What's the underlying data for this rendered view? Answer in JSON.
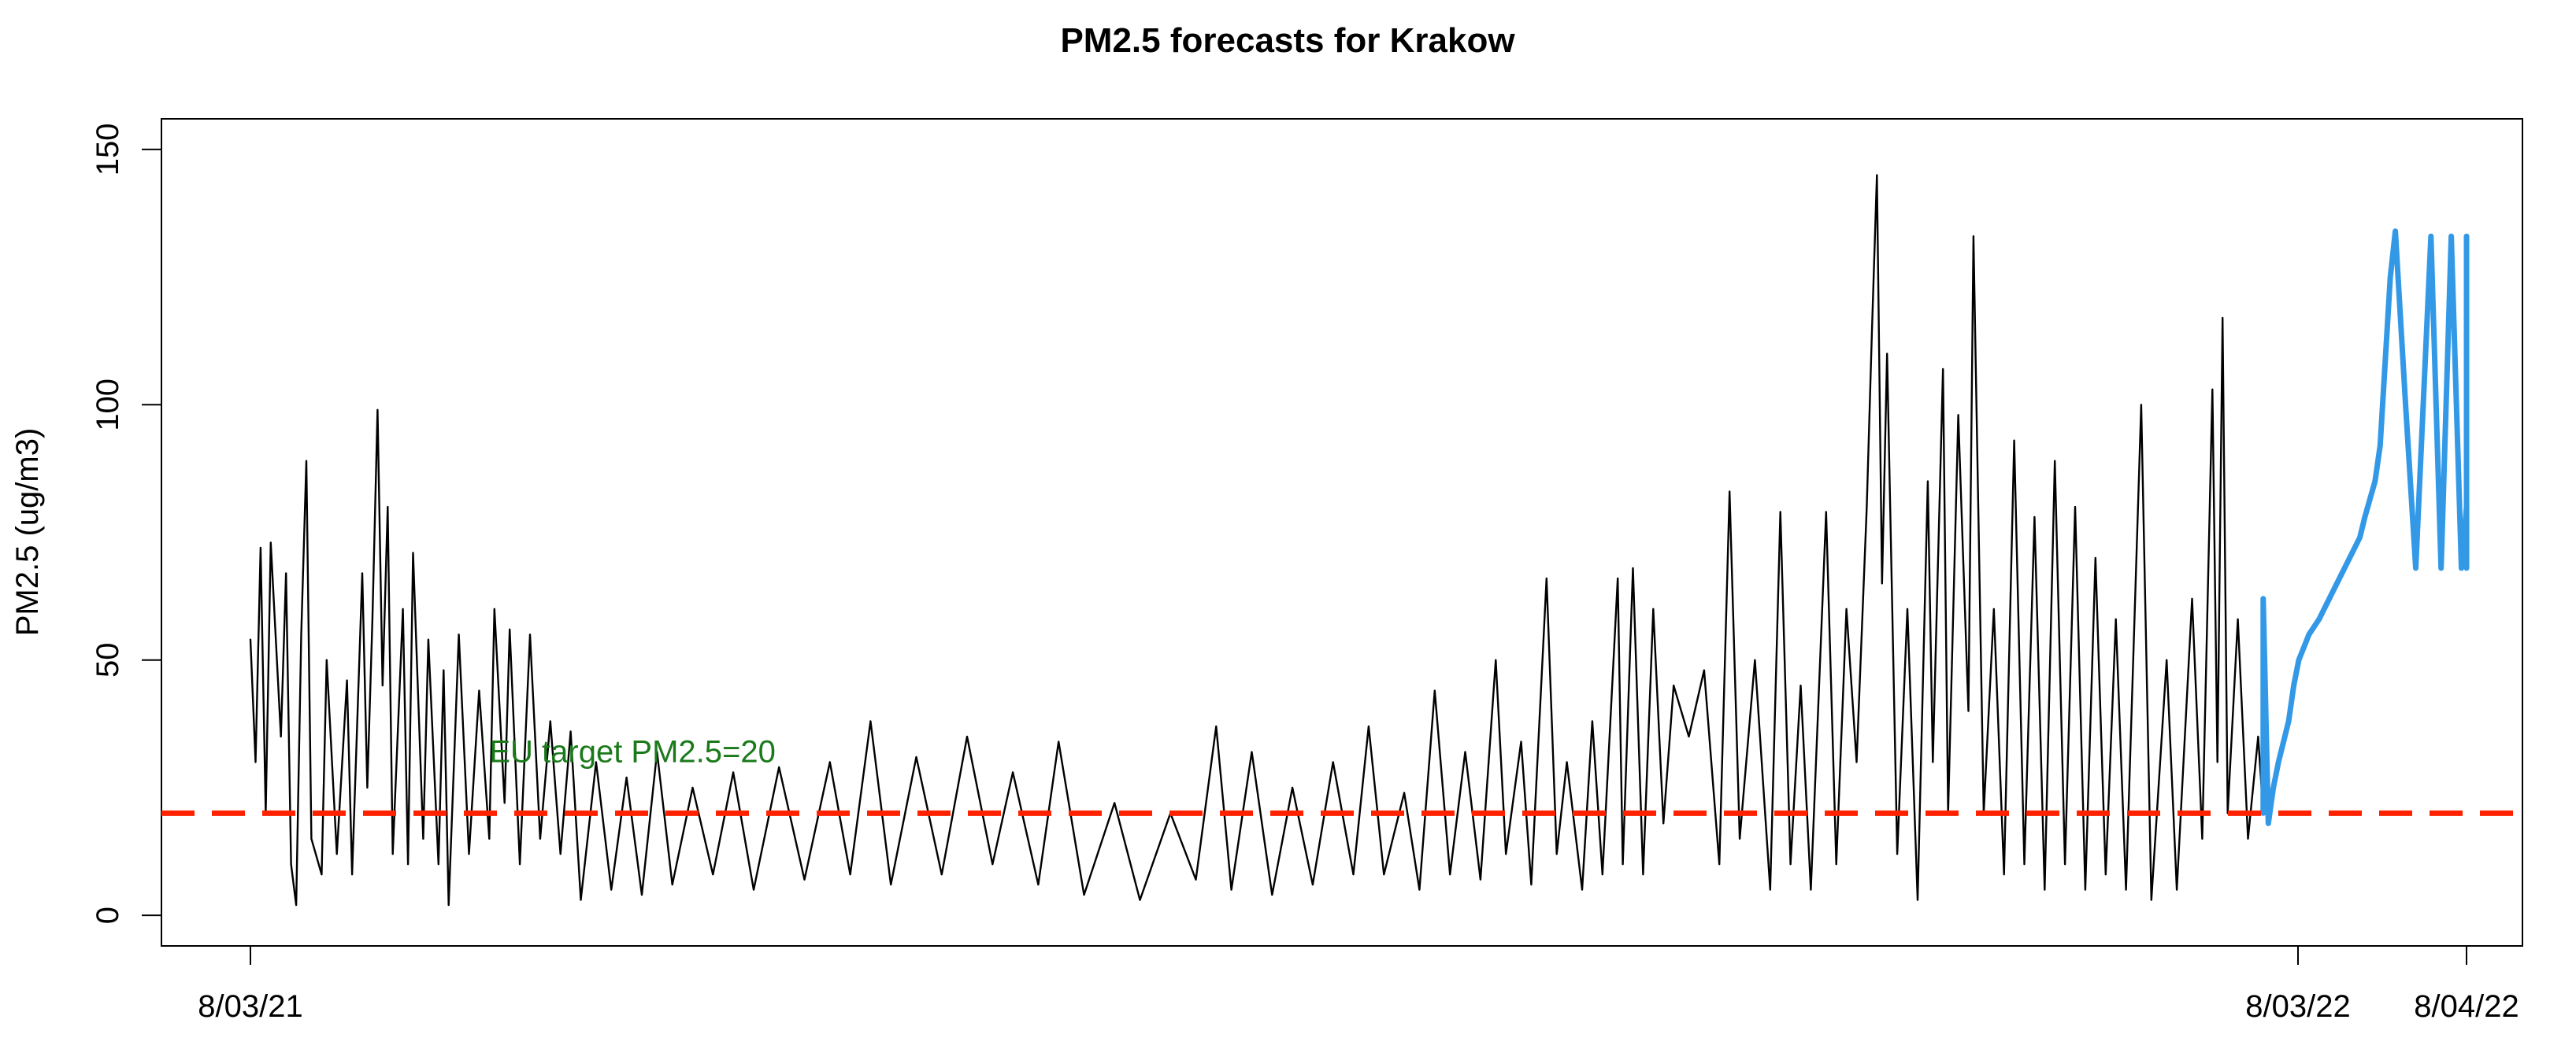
{
  "chart_data": {
    "type": "line",
    "title": "PM2.5 forecasts for Krakow",
    "xlabel": "",
    "ylabel": "PM2.5 (ug/m3)",
    "ylim": [
      -6,
      156
    ],
    "x_ticks": [
      "8/03/21",
      "8/03/22",
      "8/04/22"
    ],
    "y_ticks": [
      0,
      50,
      100,
      150
    ],
    "grid": false,
    "colors": {
      "observed": "#000000",
      "forecast": "#3399e6",
      "threshold": "#ff2200",
      "annotation": "#1a7a1a"
    },
    "reference_line": {
      "y": 20,
      "style": "dashed",
      "color": "#ff2200"
    },
    "annotation": {
      "text": "EU target PM2.5=20",
      "x": "2021-04-24",
      "y": 30,
      "color": "#1a7a1a"
    },
    "series": [
      {
        "role": "observed",
        "color": "#000000",
        "points": [
          [
            "2021-03-08",
            54
          ],
          [
            "2021-03-09",
            30
          ],
          [
            "2021-03-10",
            72
          ],
          [
            "2021-03-11",
            20
          ],
          [
            "2021-03-12",
            73
          ],
          [
            "2021-03-14",
            35
          ],
          [
            "2021-03-15",
            67
          ],
          [
            "2021-03-16",
            10
          ],
          [
            "2021-03-17",
            2
          ],
          [
            "2021-03-18",
            55
          ],
          [
            "2021-03-19",
            89
          ],
          [
            "2021-03-20",
            15
          ],
          [
            "2021-03-22",
            8
          ],
          [
            "2021-03-23",
            50
          ],
          [
            "2021-03-25",
            12
          ],
          [
            "2021-03-27",
            46
          ],
          [
            "2021-03-28",
            8
          ],
          [
            "2021-03-30",
            67
          ],
          [
            "2021-03-31",
            25
          ],
          [
            "2021-04-01",
            58
          ],
          [
            "2021-04-02",
            99
          ],
          [
            "2021-04-03",
            45
          ],
          [
            "2021-04-04",
            80
          ],
          [
            "2021-04-05",
            12
          ],
          [
            "2021-04-07",
            60
          ],
          [
            "2021-04-08",
            10
          ],
          [
            "2021-04-09",
            71
          ],
          [
            "2021-04-11",
            15
          ],
          [
            "2021-04-12",
            54
          ],
          [
            "2021-04-14",
            10
          ],
          [
            "2021-04-15",
            48
          ],
          [
            "2021-04-16",
            2
          ],
          [
            "2021-04-18",
            55
          ],
          [
            "2021-04-20",
            12
          ],
          [
            "2021-04-22",
            44
          ],
          [
            "2021-04-24",
            15
          ],
          [
            "2021-04-25",
            60
          ],
          [
            "2021-04-27",
            22
          ],
          [
            "2021-04-28",
            56
          ],
          [
            "2021-04-30",
            10
          ],
          [
            "2021-05-02",
            55
          ],
          [
            "2021-05-04",
            15
          ],
          [
            "2021-05-06",
            38
          ],
          [
            "2021-05-08",
            12
          ],
          [
            "2021-05-10",
            36
          ],
          [
            "2021-05-12",
            3
          ],
          [
            "2021-05-15",
            30
          ],
          [
            "2021-05-18",
            5
          ],
          [
            "2021-05-21",
            27
          ],
          [
            "2021-05-24",
            4
          ],
          [
            "2021-05-27",
            32
          ],
          [
            "2021-05-30",
            6
          ],
          [
            "2021-06-03",
            25
          ],
          [
            "2021-06-07",
            8
          ],
          [
            "2021-06-11",
            28
          ],
          [
            "2021-06-15",
            5
          ],
          [
            "2021-06-20",
            29
          ],
          [
            "2021-06-25",
            7
          ],
          [
            "2021-06-30",
            30
          ],
          [
            "2021-07-04",
            8
          ],
          [
            "2021-07-08",
            38
          ],
          [
            "2021-07-12",
            6
          ],
          [
            "2021-07-17",
            31
          ],
          [
            "2021-07-22",
            8
          ],
          [
            "2021-07-27",
            35
          ],
          [
            "2021-08-01",
            10
          ],
          [
            "2021-08-05",
            28
          ],
          [
            "2021-08-10",
            6
          ],
          [
            "2021-08-14",
            34
          ],
          [
            "2021-08-19",
            4
          ],
          [
            "2021-08-25",
            22
          ],
          [
            "2021-08-30",
            3
          ],
          [
            "2021-09-05",
            20
          ],
          [
            "2021-09-10",
            7
          ],
          [
            "2021-09-14",
            37
          ],
          [
            "2021-09-17",
            5
          ],
          [
            "2021-09-21",
            32
          ],
          [
            "2021-09-25",
            4
          ],
          [
            "2021-09-29",
            25
          ],
          [
            "2021-10-03",
            6
          ],
          [
            "2021-10-07",
            30
          ],
          [
            "2021-10-11",
            8
          ],
          [
            "2021-10-14",
            37
          ],
          [
            "2021-10-17",
            8
          ],
          [
            "2021-10-21",
            24
          ],
          [
            "2021-10-24",
            5
          ],
          [
            "2021-10-27",
            44
          ],
          [
            "2021-10-30",
            8
          ],
          [
            "2021-11-02",
            32
          ],
          [
            "2021-11-05",
            7
          ],
          [
            "2021-11-08",
            50
          ],
          [
            "2021-11-10",
            12
          ],
          [
            "2021-11-13",
            34
          ],
          [
            "2021-11-15",
            6
          ],
          [
            "2021-11-18",
            66
          ],
          [
            "2021-11-20",
            12
          ],
          [
            "2021-11-22",
            30
          ],
          [
            "2021-11-25",
            5
          ],
          [
            "2021-11-27",
            38
          ],
          [
            "2021-11-29",
            8
          ],
          [
            "2021-12-02",
            66
          ],
          [
            "2021-12-03",
            10
          ],
          [
            "2021-12-05",
            68
          ],
          [
            "2021-12-07",
            8
          ],
          [
            "2021-12-09",
            60
          ],
          [
            "2021-12-11",
            18
          ],
          [
            "2021-12-13",
            45
          ],
          [
            "2021-12-16",
            35
          ],
          [
            "2021-12-19",
            48
          ],
          [
            "2021-12-22",
            10
          ],
          [
            "2021-12-24",
            83
          ],
          [
            "2021-12-26",
            15
          ],
          [
            "2021-12-29",
            50
          ],
          [
            "2022-01-01",
            5
          ],
          [
            "2022-01-03",
            79
          ],
          [
            "2022-01-05",
            10
          ],
          [
            "2022-01-07",
            45
          ],
          [
            "2022-01-09",
            5
          ],
          [
            "2022-01-12",
            79
          ],
          [
            "2022-01-14",
            10
          ],
          [
            "2022-01-16",
            60
          ],
          [
            "2022-01-18",
            30
          ],
          [
            "2022-01-20",
            80
          ],
          [
            "2022-01-21",
            114
          ],
          [
            "2022-01-22",
            145
          ],
          [
            "2022-01-23",
            65
          ],
          [
            "2022-01-24",
            110
          ],
          [
            "2022-01-26",
            12
          ],
          [
            "2022-01-28",
            60
          ],
          [
            "2022-01-30",
            3
          ],
          [
            "2022-02-01",
            85
          ],
          [
            "2022-02-02",
            30
          ],
          [
            "2022-02-04",
            107
          ],
          [
            "2022-02-05",
            20
          ],
          [
            "2022-02-07",
            98
          ],
          [
            "2022-02-09",
            40
          ],
          [
            "2022-02-10",
            133
          ],
          [
            "2022-02-12",
            20
          ],
          [
            "2022-02-14",
            60
          ],
          [
            "2022-02-16",
            8
          ],
          [
            "2022-02-18",
            93
          ],
          [
            "2022-02-20",
            10
          ],
          [
            "2022-02-22",
            78
          ],
          [
            "2022-02-24",
            5
          ],
          [
            "2022-02-26",
            89
          ],
          [
            "2022-02-28",
            10
          ],
          [
            "2022-03-02",
            80
          ],
          [
            "2022-03-04",
            5
          ],
          [
            "2022-03-06",
            70
          ],
          [
            "2022-03-08",
            8
          ],
          [
            "2022-03-10",
            58
          ],
          [
            "2022-03-12",
            5
          ],
          [
            "2022-03-15",
            100
          ],
          [
            "2022-03-17",
            3
          ],
          [
            "2022-03-20",
            50
          ],
          [
            "2022-03-22",
            5
          ],
          [
            "2022-03-25",
            62
          ],
          [
            "2022-03-27",
            15
          ],
          [
            "2022-03-29",
            103
          ],
          [
            "2022-03-30",
            30
          ],
          [
            "2022-03-31",
            117
          ],
          [
            "2022-04-01",
            20
          ],
          [
            "2022-04-03",
            58
          ],
          [
            "2022-04-05",
            15
          ],
          [
            "2022-04-07",
            35
          ],
          [
            "2022-04-08",
            20
          ]
        ]
      },
      {
        "role": "forecast",
        "color": "#3399e6",
        "points": [
          [
            "2022-04-08",
            20
          ],
          [
            "2022-04-08",
            62
          ],
          [
            "2022-04-09",
            18
          ],
          [
            "2022-04-10",
            25
          ],
          [
            "2022-04-11",
            30
          ],
          [
            "2022-04-13",
            38
          ],
          [
            "2022-04-14",
            45
          ],
          [
            "2022-04-15",
            50
          ],
          [
            "2022-04-17",
            55
          ],
          [
            "2022-04-19",
            58
          ],
          [
            "2022-04-21",
            62
          ],
          [
            "2022-04-23",
            66
          ],
          [
            "2022-04-25",
            70
          ],
          [
            "2022-04-27",
            74
          ],
          [
            "2022-04-28",
            78
          ],
          [
            "2022-04-30",
            85
          ],
          [
            "2022-05-01",
            92
          ],
          [
            "2022-05-03",
            125
          ],
          [
            "2022-05-04",
            134
          ],
          [
            "2022-05-06",
            100
          ],
          [
            "2022-05-08",
            68
          ],
          [
            "2022-05-11",
            133
          ],
          [
            "2022-05-13",
            68
          ],
          [
            "2022-05-15",
            133
          ],
          [
            "2022-05-17",
            68
          ],
          [
            "2022-05-18",
            80
          ],
          [
            "2022-05-18",
            133
          ],
          [
            "2022-05-18",
            68
          ]
        ]
      }
    ]
  }
}
